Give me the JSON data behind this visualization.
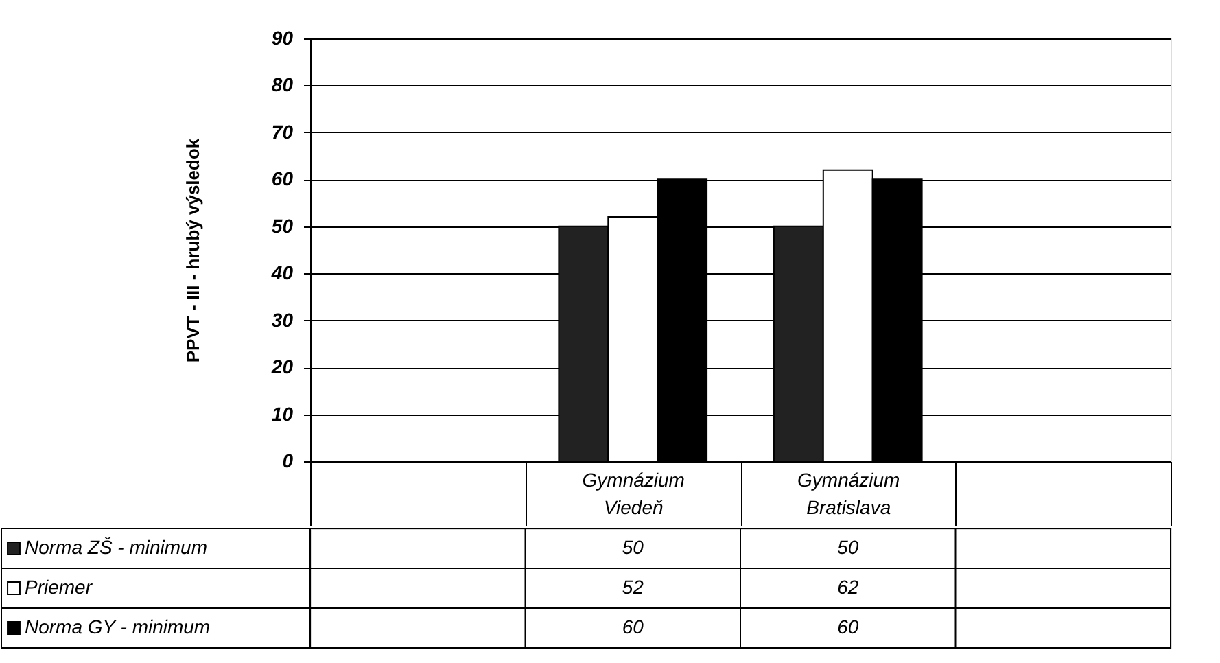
{
  "chart_data": {
    "type": "bar",
    "ylabel": "PPVT - III - hrubý výsledok",
    "categories": [
      null,
      "Gymnázium Viedeň",
      "Gymnázium Bratislava",
      null
    ],
    "series": [
      {
        "name": "Norma ZŠ - minimum",
        "color": "#222222",
        "values": [
          null,
          50,
          50,
          null
        ]
      },
      {
        "name": "Priemer",
        "color": "#ffffff",
        "values": [
          null,
          52,
          62,
          null
        ]
      },
      {
        "name": "Norma GY - minimum",
        "color": "#000000",
        "values": [
          null,
          60,
          60,
          null
        ]
      }
    ],
    "ylim": [
      0,
      90
    ],
    "yticks": [
      0,
      10,
      20,
      30,
      40,
      50,
      60,
      70,
      80,
      90
    ],
    "grid": "y",
    "legend": "bottom",
    "data_labels": true
  }
}
